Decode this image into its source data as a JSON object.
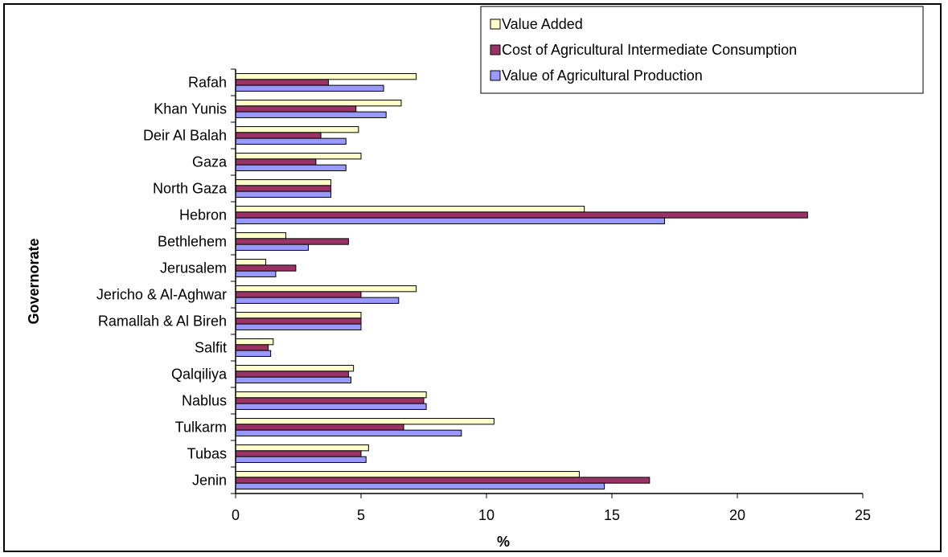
{
  "chart_data": {
    "type": "bar",
    "orientation": "horizontal",
    "title": "",
    "xlabel": "%",
    "ylabel": "Governorate",
    "xlim": [
      0,
      25
    ],
    "xticks": [
      0,
      5,
      10,
      15,
      20,
      25
    ],
    "grid": false,
    "legend_position": "top-right",
    "categories": [
      "Jenin",
      "Tubas",
      "Tulkarm",
      "Nablus",
      "Qalqiliya",
      "Salfit",
      "Ramallah & Al Bireh",
      "Jericho & Al-Aghwar",
      "Jerusalem",
      "Bethlehem",
      "Hebron",
      "North Gaza",
      "Gaza",
      "Deir Al Balah",
      "Khan Yunis",
      "Rafah"
    ],
    "series": [
      {
        "name": "Value Added",
        "color": "#ffffcc",
        "values": [
          13.7,
          5.3,
          10.3,
          7.6,
          4.7,
          1.5,
          5.0,
          7.2,
          1.2,
          2.0,
          13.9,
          3.8,
          5.0,
          4.9,
          6.6,
          7.2
        ]
      },
      {
        "name": "Cost of Agricultural Intermediate Consumption",
        "color": "#993366",
        "values": [
          16.5,
          5.0,
          6.7,
          7.5,
          4.5,
          1.3,
          5.0,
          5.0,
          2.4,
          4.5,
          22.8,
          3.8,
          3.2,
          3.4,
          4.8,
          3.7
        ]
      },
      {
        "name": "Value of Agricultural Production",
        "color": "#9999ff",
        "values": [
          14.7,
          5.2,
          9.0,
          7.6,
          4.6,
          1.4,
          5.0,
          6.5,
          1.6,
          2.9,
          17.1,
          3.8,
          4.4,
          4.4,
          6.0,
          5.9
        ]
      }
    ]
  }
}
